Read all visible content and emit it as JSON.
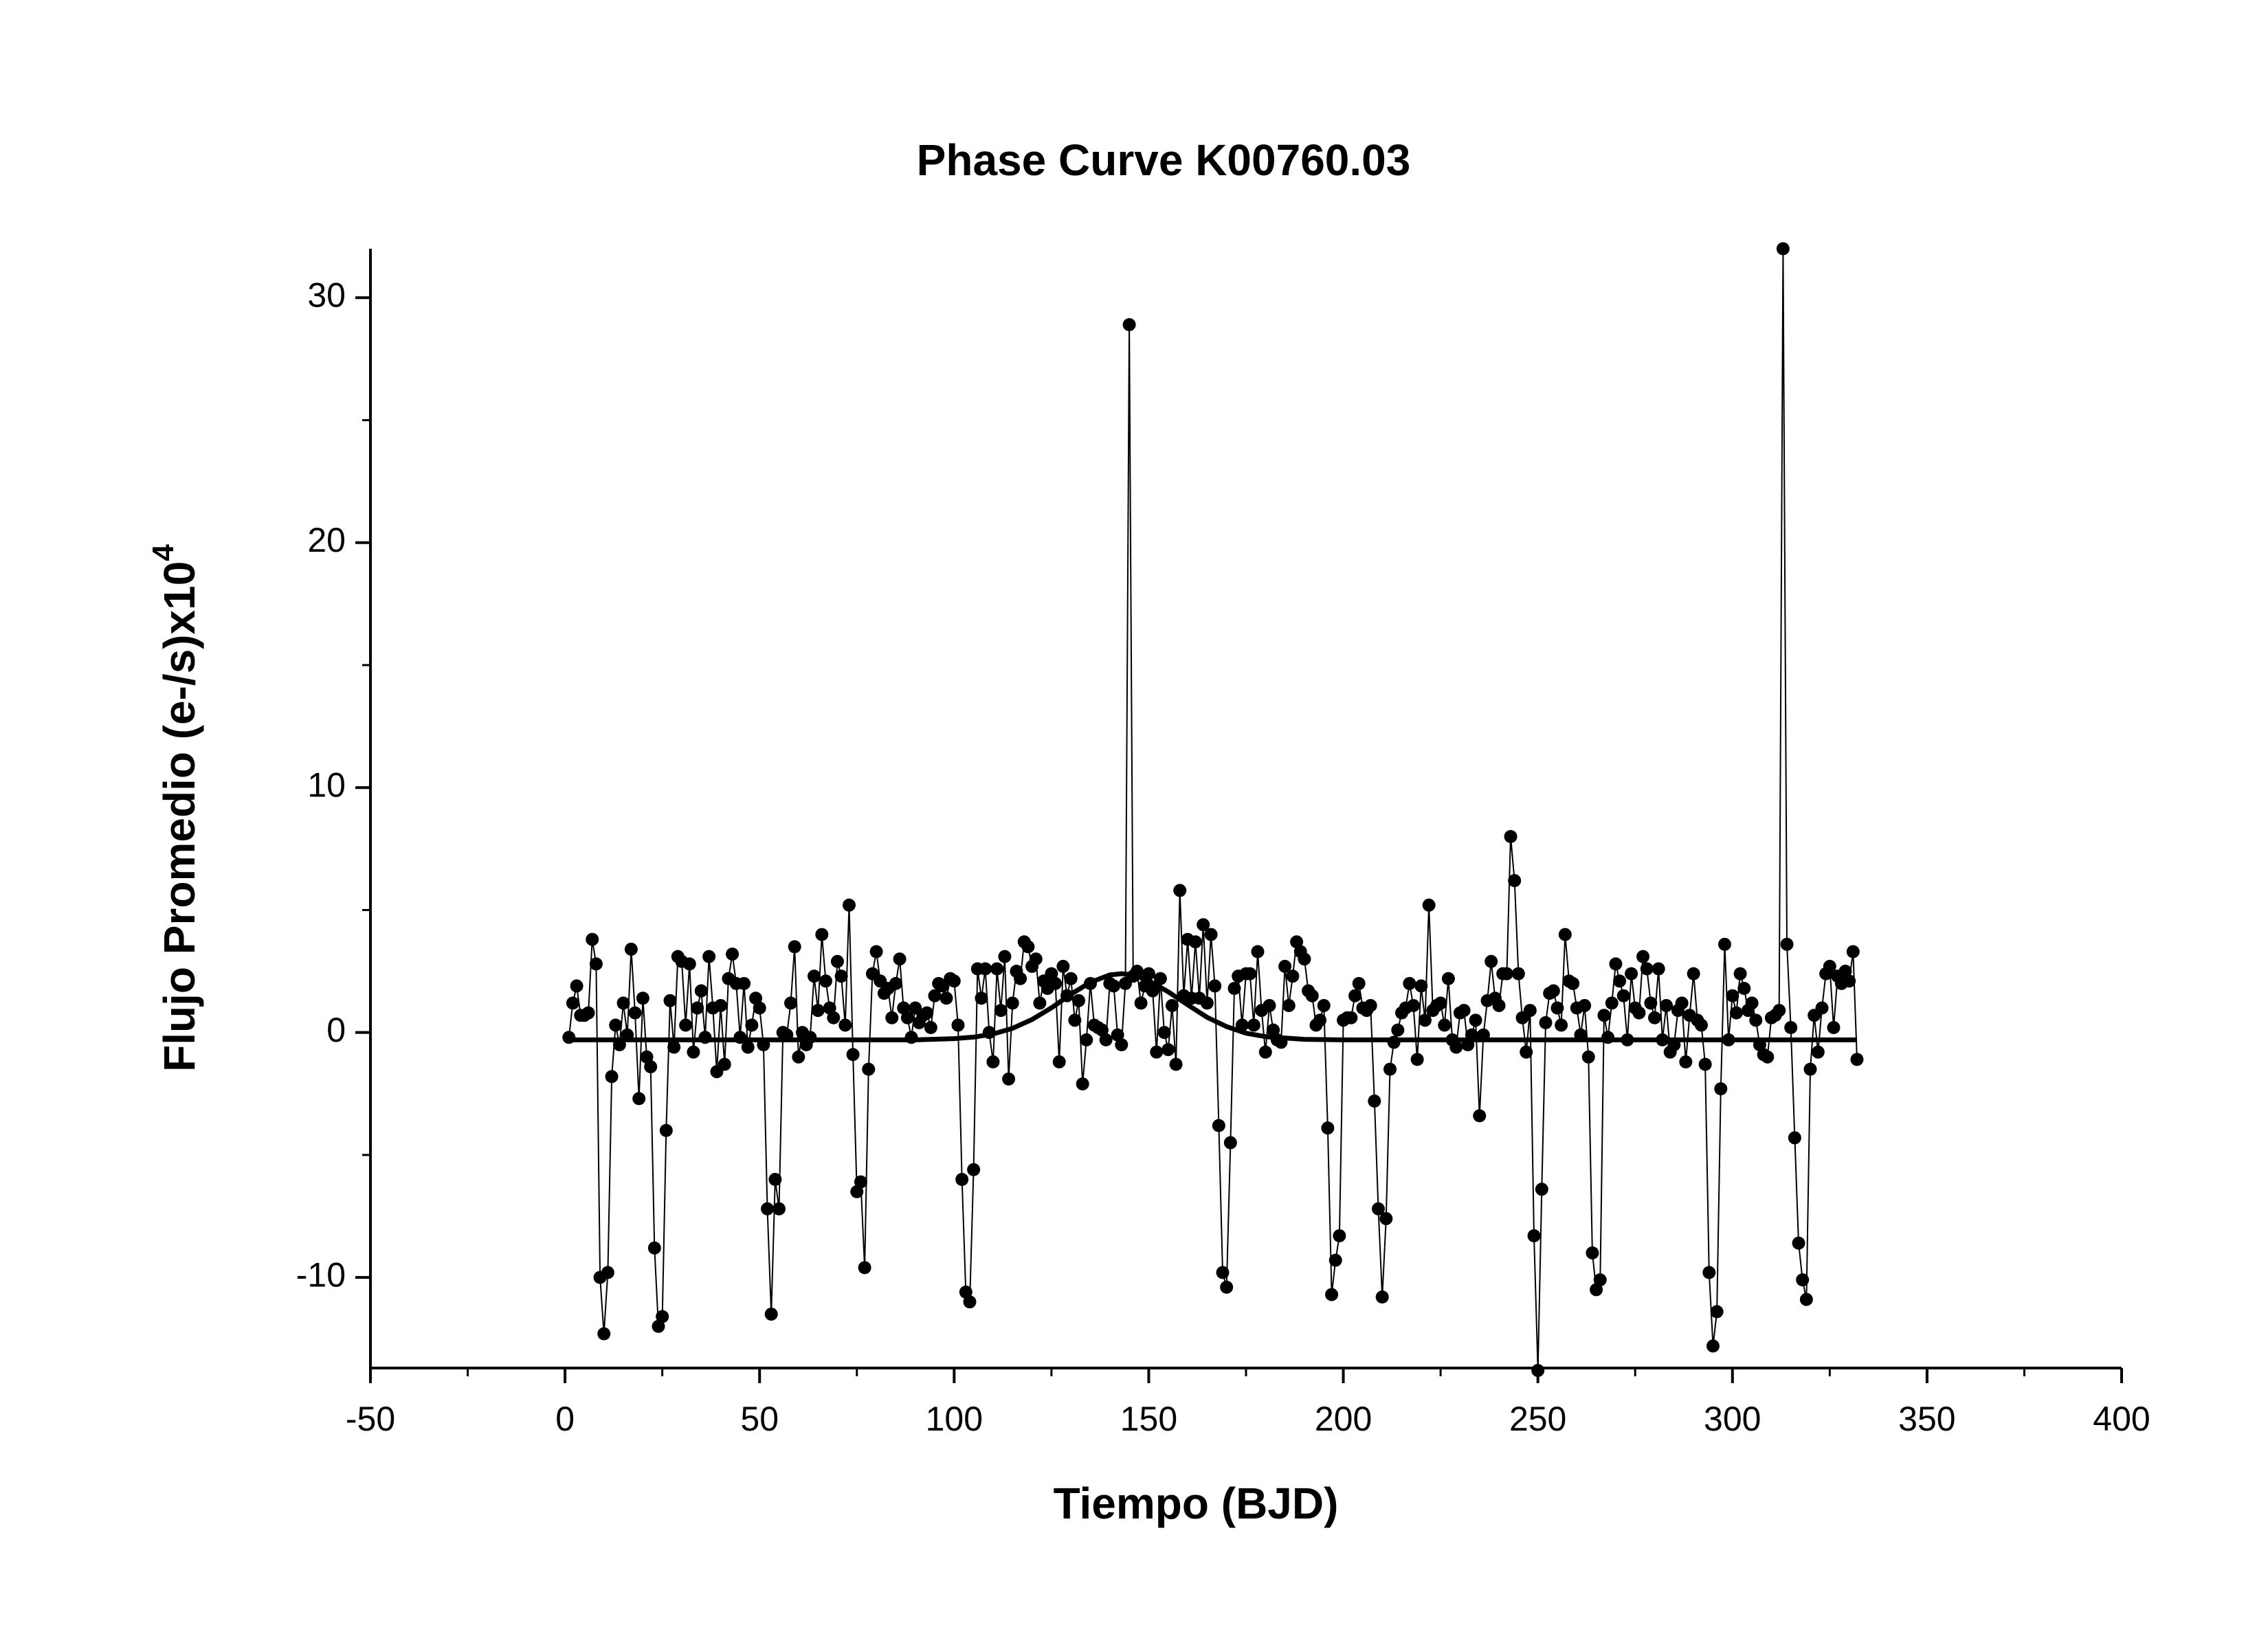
{
  "chart_data": {
    "type": "line",
    "title": "Phase Curve K00760.03",
    "x_label": "Tiempo (BJD)",
    "y_label": "Flujo Promedio (e-/s)x10",
    "y_label_exponent": "4",
    "xlim": [
      -50,
      400
    ],
    "xticks": [
      -50,
      0,
      50,
      100,
      150,
      200,
      250,
      300,
      350,
      400
    ],
    "ylim": [
      -13.7,
      32
    ],
    "yticks": [
      -10,
      0,
      10,
      20,
      30
    ],
    "grid": false,
    "series": [
      {
        "color": "#000000",
        "style": "line+markers",
        "x": [
          1,
          2,
          3,
          4,
          5,
          6,
          7,
          8,
          9,
          10,
          11,
          12,
          13,
          14,
          15,
          16,
          17,
          18,
          19,
          20,
          21,
          22,
          23,
          24,
          25,
          26,
          27,
          28,
          29,
          30,
          31,
          32,
          33,
          34,
          35,
          36,
          37,
          38,
          39,
          40,
          41,
          42,
          43,
          44,
          45,
          46,
          47,
          48,
          49,
          50,
          51,
          52,
          53,
          54,
          55,
          56,
          57,
          58,
          59,
          60,
          61,
          62,
          63,
          64,
          65,
          66,
          67,
          68,
          69,
          70,
          71,
          72,
          73,
          74,
          75,
          76,
          77,
          78,
          79,
          80,
          81,
          82,
          83,
          84,
          85,
          86,
          87,
          88,
          89,
          90,
          91,
          92,
          93,
          94,
          95,
          96,
          97,
          98,
          99,
          100,
          101,
          102,
          103,
          104,
          105,
          106,
          107,
          108,
          109,
          110,
          111,
          112,
          113,
          114,
          115,
          116,
          117,
          118,
          119,
          120,
          121,
          122,
          123,
          124,
          125,
          126,
          127,
          128,
          129,
          130,
          131,
          132,
          133,
          134,
          135,
          136,
          137,
          138,
          139,
          140,
          141,
          142,
          143,
          144,
          145,
          146,
          147,
          148,
          149,
          150,
          151,
          152,
          153,
          154,
          155,
          156,
          157,
          158,
          159,
          160,
          161,
          162,
          163,
          164,
          165,
          166,
          167,
          168,
          169,
          170,
          171,
          172,
          173,
          174,
          175,
          176,
          177,
          178,
          179,
          180,
          181,
          182,
          183,
          184,
          185,
          186,
          187,
          188,
          189,
          190,
          191,
          192,
          193,
          194,
          195,
          196,
          197,
          198,
          199,
          200,
          201,
          202,
          203,
          204,
          205,
          206,
          207,
          208,
          209,
          210,
          211,
          212,
          213,
          214,
          215,
          216,
          217,
          218,
          219,
          220,
          221,
          222,
          223,
          224,
          225,
          226,
          227,
          228,
          229,
          230,
          231,
          232,
          233,
          234,
          235,
          236,
          237,
          238,
          239,
          240,
          241,
          242,
          243,
          244,
          245,
          246,
          247,
          248,
          249,
          250,
          251,
          252,
          253,
          254,
          255,
          256,
          257,
          258,
          259,
          260,
          261,
          262,
          263,
          264,
          265,
          266,
          267,
          268,
          269,
          270,
          271,
          272,
          273,
          274,
          275,
          276,
          277,
          278,
          279,
          280,
          281,
          282,
          283,
          284,
          285,
          286,
          287,
          288,
          289,
          290,
          291,
          292,
          293,
          294,
          295,
          296,
          297,
          298,
          299,
          300,
          301,
          302,
          303,
          304,
          305,
          306,
          307,
          308,
          309,
          310,
          311,
          312,
          313,
          314,
          315,
          316,
          317,
          318,
          319,
          320,
          321,
          322,
          323,
          324,
          325,
          326,
          327,
          328,
          329,
          330,
          331,
          332
        ],
        "values": [
          -0.2,
          1.2,
          1.9,
          0.7,
          0.7,
          0.8,
          3.8,
          2.8,
          -10,
          -12.3,
          -9.8,
          -1.8,
          0.3,
          -0.5,
          1.2,
          -0.1,
          3.4,
          0.8,
          -2.7,
          1.4,
          -1,
          -1.4,
          -8.8,
          -12,
          -11.6,
          -4,
          1.3,
          -0.6,
          3.1,
          2.9,
          0.3,
          2.8,
          -0.8,
          1,
          1.7,
          -0.2,
          3.1,
          1,
          -1.6,
          1.1,
          -1.3,
          2.2,
          3.2,
          2,
          -0.2,
          2,
          -0.6,
          0.3,
          1.4,
          1,
          -0.5,
          -7.2,
          -11.5,
          -6,
          -7.2,
          0,
          -0.1,
          1.2,
          3.5,
          -1,
          0,
          -0.5,
          -0.2,
          2.3,
          0.9,
          4,
          2.1,
          1,
          0.6,
          2.9,
          2.3,
          0.3,
          5.2,
          -0.9,
          -6.5,
          -6.1,
          -9.6,
          -1.5,
          2.4,
          3.3,
          2.1,
          1.6,
          1.8,
          0.6,
          2,
          3,
          1,
          0.6,
          -0.2,
          1,
          0.4,
          0.7,
          0.8,
          0.2,
          1.5,
          2,
          1.9,
          1.4,
          2.2,
          2.1,
          0.3,
          -6,
          -10.6,
          -11,
          -5.6,
          2.6,
          1.4,
          2.6,
          0,
          -1.2,
          2.6,
          0.9,
          3.1,
          -1.9,
          1.2,
          2.5,
          2.2,
          3.7,
          3.5,
          2.7,
          3,
          1.2,
          2.1,
          1.8,
          2.4,
          2,
          -1.2,
          2.7,
          1.5,
          2.2,
          0.5,
          1.3,
          -2.1,
          -0.3,
          2,
          0.3,
          0.2,
          0.1,
          -0.3,
          2,
          1.9,
          -0.1,
          -0.5,
          2,
          28.9,
          2.3,
          2.5,
          1.2,
          1.9,
          2.4,
          1.7,
          -0.8,
          2.2,
          0,
          -0.7,
          1.1,
          -1.3,
          5.8,
          1.5,
          3.8,
          1.4,
          3.7,
          1.4,
          4.4,
          1.2,
          4,
          1.9,
          -3.8,
          -9.8,
          -10.4,
          -4.5,
          1.8,
          2.3,
          0.3,
          2.4,
          2.4,
          0.3,
          3.3,
          0.9,
          -0.8,
          1.1,
          0.1,
          -0.3,
          -0.4,
          2.7,
          1.1,
          2.3,
          3.7,
          3.3,
          3,
          1.7,
          1.5,
          0.3,
          0.5,
          1.1,
          -3.9,
          -10.7,
          -9.3,
          -8.3,
          0.5,
          0.6,
          0.6,
          1.5,
          2,
          1,
          0.9,
          1.1,
          -2.8,
          -7.2,
          -10.8,
          -7.6,
          -1.5,
          -0.4,
          0.1,
          0.8,
          1,
          2,
          1.1,
          -1.1,
          1.9,
          0.5,
          5.2,
          0.9,
          1.1,
          1.2,
          0.3,
          2.2,
          -0.3,
          -0.6,
          0.8,
          0.9,
          -0.5,
          -0.1,
          0.5,
          -3.4,
          -0.1,
          1.3,
          2.9,
          1.4,
          1.1,
          2.4,
          2.4,
          8,
          6.2,
          2.4,
          0.6,
          -0.8,
          0.9,
          -8.3,
          -13.8,
          -6.4,
          0.4,
          1.6,
          1.7,
          1,
          0.3,
          4,
          2.1,
          2,
          1,
          -0.1,
          1.1,
          -1,
          -9,
          -10.5,
          -10.1,
          0.7,
          -0.2,
          1.2,
          2.8,
          2.1,
          1.5,
          -0.3,
          2.4,
          1,
          0.8,
          3.1,
          2.6,
          1.2,
          0.6,
          2.6,
          -0.3,
          1.1,
          -0.8,
          -0.5,
          0.9,
          1.2,
          -1.2,
          0.7,
          2.4,
          0.5,
          0.3,
          -1.3,
          -9.8,
          -12.8,
          -11.4,
          -2.3,
          3.6,
          -0.3,
          1.5,
          0.8,
          2.4,
          1.8,
          0.9,
          1.2,
          0.5,
          -0.5,
          -0.9,
          -1,
          0.6,
          0.7,
          0.9,
          32,
          3.6,
          0.2,
          -4.3,
          -8.6,
          -10.1,
          -10.9,
          -1.5,
          0.7,
          -0.8,
          1,
          2.4,
          2.7,
          0.2,
          2.3,
          2,
          2.5,
          2.1,
          3.3,
          -1.1
        ]
      },
      {
        "color": "#000000",
        "style": "line",
        "x": [
          1,
          20,
          40,
          60,
          80,
          90,
          100,
          105,
          110,
          115,
          120,
          125,
          130,
          135,
          140,
          143,
          146,
          150,
          155,
          160,
          165,
          170,
          175,
          180,
          190,
          200,
          250,
          300,
          332
        ],
        "values": [
          -0.3,
          -0.3,
          -0.3,
          -0.3,
          -0.3,
          -0.3,
          -0.25,
          -0.19,
          -0.06,
          0.17,
          0.53,
          1.01,
          1.56,
          2.05,
          2.35,
          2.4,
          2.35,
          2.12,
          1.66,
          1.13,
          0.62,
          0.24,
          -0.03,
          -0.17,
          -0.28,
          -0.3,
          -0.3,
          -0.3,
          -0.3
        ]
      }
    ]
  }
}
